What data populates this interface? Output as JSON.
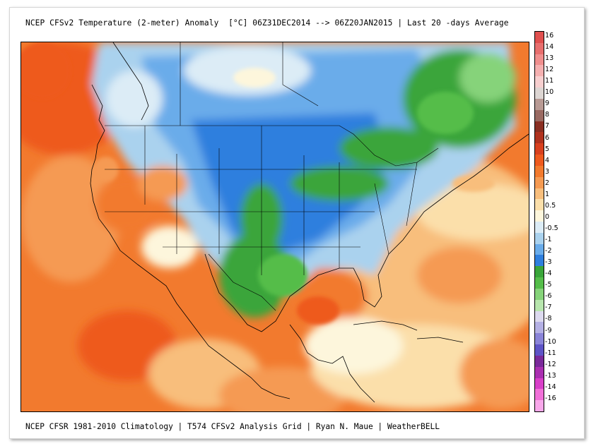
{
  "title": "NCEP CFSv2 Temperature (2-meter) Anomaly  [°C] 06Z31DEC2014 --> 06Z20JAN2015 | Last 20 -days Average",
  "footer": "NCEP CFSR 1981-2010 Climatology | T574 CFSv2 Analysis Grid | Ryan N. Maue | WeatherBELL",
  "colorbar": {
    "labels": [
      "16",
      "14",
      "13",
      "12",
      "11",
      "10",
      "9",
      "8",
      "7",
      "6",
      "5",
      "4",
      "3",
      "2",
      "1",
      "0.5",
      "0",
      "-0.5",
      "-1",
      "-2",
      "-3",
      "-4",
      "-5",
      "-6",
      "-7",
      "-8",
      "-9",
      "-10",
      "-11",
      "-12",
      "-13",
      "-14",
      "-16"
    ],
    "colors": [
      "#e0504f",
      "#e86f6e",
      "#f08f8e",
      "#f5b0b0",
      "#f7cfcf",
      "#ddd6d3",
      "#b89a94",
      "#9a6a62",
      "#8a2f22",
      "#b0321e",
      "#d8401e",
      "#ee5a1e",
      "#f27a2e",
      "#f59a52",
      "#f8be7c",
      "#fbdfaa",
      "#fdf6dc",
      "#dcecf6",
      "#aad2ee",
      "#6aacea",
      "#2f7fde",
      "#3aa53a",
      "#55bd4a",
      "#86d37a",
      "#b8e6ae",
      "#dcd9ee",
      "#b4b0e4",
      "#8a84d8",
      "#5e54c6",
      "#7a2a9a",
      "#aa30b0",
      "#d840c8",
      "#f070d8",
      "#f8a8ea"
    ],
    "colors_order": "top-to-bottom"
  }
}
